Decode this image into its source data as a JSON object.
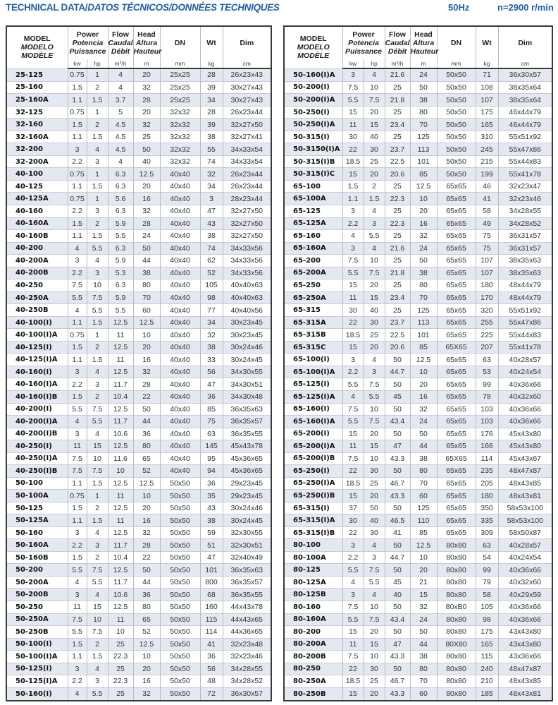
{
  "header": {
    "title_en": "TECHNICAL DATA/",
    "title_rest": "DATOS TÉCNICOS/DONNÉES TECHNIQUES",
    "frequency": "50Hz",
    "speed": "n=2900 r/min",
    "accent_color": "#1f5fa9"
  },
  "columns": {
    "model": [
      "MODEL",
      "MODELO",
      "MODÈLE"
    ],
    "power": [
      "Power",
      "Potencia",
      "Puissance"
    ],
    "flow": [
      "Flow",
      "Caudal",
      "Débit"
    ],
    "head": [
      "Head",
      "Altura",
      "Hauteur"
    ],
    "dn": "DN",
    "wt": "Wt",
    "dim": "Dim",
    "units": [
      "kw",
      "hp",
      "m³/h",
      "m",
      "mm",
      "kg",
      "cm"
    ]
  },
  "left_rows": [
    [
      "25-125",
      "0.75",
      "1",
      "4",
      "20",
      "25x25",
      "28",
      "26x23x43"
    ],
    [
      "25-160",
      "1.5",
      "2",
      "4",
      "32",
      "25x25",
      "39",
      "30x27x43"
    ],
    [
      "25-160A",
      "1.1",
      "1.5",
      "3.7",
      "28",
      "25x25",
      "34",
      "30x27x43"
    ],
    [
      "32-125",
      "0.75",
      "1",
      "5",
      "20",
      "32x32",
      "28",
      "26x23x44"
    ],
    [
      "32-160",
      "1.5",
      "2",
      "4.5",
      "32",
      "32x32",
      "39",
      "32x27x50"
    ],
    [
      "32-160A",
      "1.1",
      "1.5",
      "4.5",
      "25",
      "32x32",
      "38",
      "32x27x41"
    ],
    [
      "32-200",
      "3",
      "4",
      "4.5",
      "50",
      "32x32",
      "55",
      "34x33x54"
    ],
    [
      "32-200A",
      "2.2",
      "3",
      "4",
      "40",
      "32x32",
      "74",
      "34x33x54"
    ],
    [
      "40-100",
      "0.75",
      "1",
      "6.3",
      "12.5",
      "40x40",
      "32",
      "26x23x44"
    ],
    [
      "40-125",
      "1.1",
      "1.5",
      "6.3",
      "20",
      "40x40",
      "34",
      "26x23x44"
    ],
    [
      "40-125A",
      "0.75",
      "1",
      "5.6",
      "16",
      "40x40",
      "3",
      "28x23x44"
    ],
    [
      "40-160",
      "2.2",
      "3",
      "6.3",
      "32",
      "40x40",
      "47",
      "32x27x50"
    ],
    [
      "40-160A",
      "1.5",
      "2",
      "5.9",
      "28",
      "40x40",
      "43",
      "32x27x50"
    ],
    [
      "40-160B",
      "1.1",
      "1.5",
      "5.5",
      "24",
      "40x40",
      "38",
      "32x27x50"
    ],
    [
      "40-200",
      "4",
      "5.5",
      "6.3",
      "50",
      "40x40",
      "74",
      "34x33x56"
    ],
    [
      "40-200A",
      "3",
      "4",
      "5.9",
      "44",
      "40x40",
      "62",
      "34x33x56"
    ],
    [
      "40-200B",
      "2.2",
      "3",
      "5.3",
      "38",
      "40x40",
      "52",
      "34x33x56"
    ],
    [
      "40-250",
      "7.5",
      "10",
      "6.3",
      "80",
      "40x40",
      "105",
      "40x40x63"
    ],
    [
      "40-250A",
      "5.5",
      "7.5",
      "5.9",
      "70",
      "40x40",
      "98",
      "40x40x63"
    ],
    [
      "40-250B",
      "4",
      "5.5",
      "5.5",
      "60",
      "40x40",
      "77",
      "40x40x56"
    ],
    [
      "40-100(I)",
      "1.1",
      "1.5",
      "12.5",
      "12.5",
      "40x40",
      "34",
      "30x23x45"
    ],
    [
      "40-100(I)A",
      "0.75",
      "1",
      "11",
      "10",
      "40x40",
      "32",
      "30x23x45"
    ],
    [
      "40-125(I)",
      "1.5",
      "2",
      "12.5",
      "20",
      "40x40",
      "38",
      "30x24x46"
    ],
    [
      "40-125(I)A",
      "1.1",
      "1.5",
      "11",
      "16",
      "40x40",
      "33",
      "30x24x45"
    ],
    [
      "40-160(I)",
      "3",
      "4",
      "12.5",
      "32",
      "40x40",
      "56",
      "34x30x55"
    ],
    [
      "40-160(I)A",
      "2.2",
      "3",
      "11.7",
      "28",
      "40x40",
      "47",
      "34x30x51"
    ],
    [
      "40-160(I)B",
      "1.5",
      "2",
      "10.4",
      "22",
      "40x40",
      "36",
      "34x30x48"
    ],
    [
      "40-200(I)",
      "5.5",
      "7.5",
      "12.5",
      "50",
      "40x40",
      "85",
      "36x35x63"
    ],
    [
      "40-200(I)A",
      "4",
      "5.5",
      "11.7",
      "44",
      "40x40",
      "75",
      "36x35x57"
    ],
    [
      "40-200(I)B",
      "3",
      "4",
      "10.6",
      "36",
      "40x40",
      "63",
      "36x35x55"
    ],
    [
      "40-250(I)",
      "11",
      "15",
      "12.5",
      "80",
      "40x40",
      "145",
      "45x43x78"
    ],
    [
      "40-250(I)A",
      "7.5",
      "10",
      "11.6",
      "65",
      "40x40",
      "95",
      "45x36x65"
    ],
    [
      "40-250(I)B",
      "7.5",
      "7.5",
      "10",
      "52",
      "40x40",
      "94",
      "45x36x65"
    ],
    [
      "50-100",
      "1.1",
      "1.5",
      "12.5",
      "12.5",
      "50x50",
      "36",
      "29x23x45"
    ],
    [
      "50-100A",
      "0.75",
      "1",
      "11",
      "10",
      "50x50",
      "35",
      "29x23x45"
    ],
    [
      "50-125",
      "1.5",
      "2",
      "12.5",
      "20",
      "50x50",
      "43",
      "30x24x46"
    ],
    [
      "50-125A",
      "1.1",
      "1.5",
      "11",
      "16",
      "50x50",
      "38",
      "30x24x45"
    ],
    [
      "50-160",
      "3",
      "4",
      "12.5",
      "32",
      "50x50",
      "59",
      "32x30x55"
    ],
    [
      "50-160A",
      "2.2",
      "3",
      "11.7",
      "28",
      "50x50",
      "51",
      "32x30x51"
    ],
    [
      "50-160B",
      "1.5",
      "2",
      "10.4",
      "22",
      "50x50",
      "47",
      "32x40x49"
    ],
    [
      "50-200",
      "5.5",
      "7.5",
      "12.5",
      "50",
      "50x50",
      "101",
      "36x35x63"
    ],
    [
      "50-200A",
      "4",
      "5.5",
      "11.7",
      "44",
      "50x50",
      "800",
      "36x35x57"
    ],
    [
      "50-200B",
      "3",
      "4",
      "10.6",
      "36",
      "50x50",
      "68",
      "36x35x55"
    ],
    [
      "50-250",
      "11",
      "15",
      "12.5",
      "80",
      "50x50",
      "160",
      "44x43x78"
    ],
    [
      "50-250A",
      "7.5",
      "10",
      "11",
      "65",
      "50x50",
      "115",
      "44x43x65"
    ],
    [
      "50-250B",
      "5.5",
      "7.5",
      "10",
      "52",
      "50x50",
      "114",
      "44x36x65"
    ],
    [
      "50-100(I)",
      "1.5",
      "2",
      "25",
      "12.5",
      "50x50",
      "41",
      "32x23x48"
    ],
    [
      "50-100(I)A",
      "1.1",
      "1.5",
      "22.3",
      "10",
      "50x50",
      "36",
      "32x23x46"
    ],
    [
      "50-125(I)",
      "3",
      "4",
      "25",
      "20",
      "50x50",
      "56",
      "34x28x55"
    ],
    [
      "50-125(I)A",
      "2.2",
      "3",
      "22.3",
      "16",
      "50x50",
      "48",
      "34x28x52"
    ],
    [
      "50-160(I)",
      "4",
      "5.5",
      "25",
      "32",
      "50x50",
      "72",
      "36x30x57"
    ]
  ],
  "right_rows": [
    [
      "50-160(I)A",
      "3",
      "4",
      "21.6",
      "24",
      "50x50",
      "71",
      "36x30x57"
    ],
    [
      "50-200(I)",
      "7.5",
      "10",
      "25",
      "50",
      "50x50",
      "108",
      "38x35x64"
    ],
    [
      "50-200(I)A",
      "5.5",
      "7.5",
      "21.8",
      "38",
      "50x50",
      "107",
      "38x35x64"
    ],
    [
      "50-250(I)",
      "15",
      "20",
      "25",
      "80",
      "50x50",
      "175",
      "46x44x79"
    ],
    [
      "50-250(I)A",
      "11",
      "15",
      "23.4",
      "70",
      "50x50",
      "165",
      "46x44x79"
    ],
    [
      "50-315(I)",
      "30",
      "40",
      "25",
      "125",
      "50x50",
      "310",
      "55x51x92"
    ],
    [
      "50-3150(I)A",
      "22",
      "30",
      "23.7",
      "113",
      "50x50",
      "245",
      "55x47x86"
    ],
    [
      "50-315(I)B",
      "18.5",
      "25",
      "22.5",
      "101",
      "50x50",
      "215",
      "55x44x83"
    ],
    [
      "50-315(I)C",
      "15",
      "20",
      "20.6",
      "85",
      "50x50",
      "199",
      "55x41x78"
    ],
    [
      "65-100",
      "1.5",
      "2",
      "25",
      "12.5",
      "65x65",
      "46",
      "32x23x47"
    ],
    [
      "65-100A",
      "1.1",
      "1.5",
      "22.3",
      "10",
      "65x65",
      "41",
      "32x23x46"
    ],
    [
      "65-125",
      "3",
      "4",
      "25",
      "20",
      "65x65",
      "58",
      "34x28x55"
    ],
    [
      "65-125A",
      "2.2",
      "3",
      "22.3",
      "16",
      "65x65",
      "49",
      "34x28x52"
    ],
    [
      "65-160",
      "4",
      "5.5",
      "25",
      "32",
      "65x65",
      "75",
      "36x31x57"
    ],
    [
      "65-160A",
      "3",
      "4",
      "21.6",
      "24",
      "65x65",
      "75",
      "36x31x57"
    ],
    [
      "65-200",
      "7.5",
      "10",
      "25",
      "50",
      "65x65",
      "107",
      "38x35x63"
    ],
    [
      "65-200A",
      "5.5",
      "7.5",
      "21.8",
      "38",
      "65x65",
      "107",
      "38x35x63"
    ],
    [
      "65-250",
      "15",
      "20",
      "25",
      "80",
      "65x65",
      "180",
      "48x44x79"
    ],
    [
      "65-250A",
      "11",
      "15",
      "23.4",
      "70",
      "65x65",
      "170",
      "48x44x79"
    ],
    [
      "65-315",
      "30",
      "40",
      "25",
      "125",
      "65x65",
      "320",
      "55x51x92"
    ],
    [
      "65-315A",
      "22",
      "30",
      "23.7",
      "113",
      "65x65",
      "255",
      "55x47x86"
    ],
    [
      "65-315B",
      "18.5",
      "25",
      "22.5",
      "101",
      "65x65",
      "225",
      "55x44x83"
    ],
    [
      "65-315C",
      "15",
      "20",
      "20.6",
      "85",
      "65X65",
      "207",
      "55x41x78"
    ],
    [
      "65-100(I)",
      "3",
      "4",
      "50",
      "12.5",
      "65x65",
      "63",
      "40x28x57"
    ],
    [
      "65-100(I)A",
      "2.2",
      "3",
      "44.7",
      "10",
      "65x65",
      "53",
      "40x24x54"
    ],
    [
      "65-125(I)",
      "5.5",
      "7.5",
      "50",
      "20",
      "65x65",
      "99",
      "40x36x66"
    ],
    [
      "65-125(I)A",
      "4",
      "5.5",
      "45",
      "16",
      "65x65",
      "78",
      "40x32x60"
    ],
    [
      "65-160(I)",
      "7.5",
      "10",
      "50",
      "32",
      "65x65",
      "103",
      "40x36x66"
    ],
    [
      "65-160(I)A",
      "5.5",
      "7.5",
      "43.4",
      "24",
      "65x65",
      "103",
      "40x36x66"
    ],
    [
      "65-200(I)",
      "15",
      "20",
      "50",
      "50",
      "65x65",
      "176",
      "45x43x80"
    ],
    [
      "65-200(I)A",
      "11",
      "15",
      "47",
      "44",
      "65x65",
      "166",
      "45x43x80"
    ],
    [
      "65-200(I)B",
      "7.5",
      "10",
      "43.3",
      "38",
      "65X65",
      "114",
      "45x43x67"
    ],
    [
      "65-250(I)",
      "22",
      "30",
      "50",
      "80",
      "65x65",
      "235",
      "48x47x87"
    ],
    [
      "65-250(I)A",
      "18.5",
      "25",
      "46.7",
      "70",
      "65x65",
      "205",
      "48x43x85"
    ],
    [
      "65-250(I)B",
      "15",
      "20",
      "43.3",
      "60",
      "65x65",
      "180",
      "48x43x81"
    ],
    [
      "65-315(I)",
      "37",
      "50",
      "50",
      "125",
      "65x65",
      "350",
      "58x53x100"
    ],
    [
      "65-315(I)A",
      "30",
      "40",
      "46.5",
      "110",
      "65x65",
      "335",
      "58x53x100"
    ],
    [
      "65-315(I)B",
      "22",
      "30",
      "41",
      "85",
      "65x65",
      "309",
      "58x50x87"
    ],
    [
      "80-100",
      "3",
      "4",
      "50",
      "12.5",
      "80x80",
      "63",
      "40x28x57"
    ],
    [
      "80-100A",
      "2.2",
      "3",
      "44.7",
      "10",
      "80x80",
      "54",
      "40x24x54"
    ],
    [
      "80-125",
      "5.5",
      "7.5",
      "50",
      "20",
      "80x80",
      "99",
      "40x36x66"
    ],
    [
      "80-125A",
      "4",
      "5.5",
      "45",
      "21",
      "80x80",
      "79",
      "40x32x60"
    ],
    [
      "80-125B",
      "3",
      "4",
      "40",
      "15",
      "80x80",
      "58",
      "40x29x59"
    ],
    [
      "80-160",
      "7.5",
      "10",
      "50",
      "32",
      "80xB0",
      "105",
      "40x36x66"
    ],
    [
      "80-160A",
      "5.5",
      "7.5",
      "43.4",
      "24",
      "80x80",
      "98",
      "40x36x66"
    ],
    [
      "80-200",
      "15",
      "20",
      "50",
      "50",
      "80x80",
      "175",
      "43x43x80"
    ],
    [
      "80-200A",
      "11",
      "15",
      "47",
      "44",
      "80X80",
      "165",
      "43x43x80"
    ],
    [
      "80-200B",
      "7.5",
      "10",
      "43.3",
      "38",
      "80x80",
      "115",
      "43x36x66"
    ],
    [
      "80-250",
      "22",
      "30",
      "50",
      "80",
      "80x80",
      "240",
      "48x47x87"
    ],
    [
      "80-250A",
      "18.5",
      "25",
      "46.7",
      "70",
      "80x80",
      "210",
      "48x43x85"
    ],
    [
      "80-250B",
      "15",
      "20",
      "43.3",
      "60",
      "80x80",
      "185",
      "48x43x81"
    ]
  ]
}
